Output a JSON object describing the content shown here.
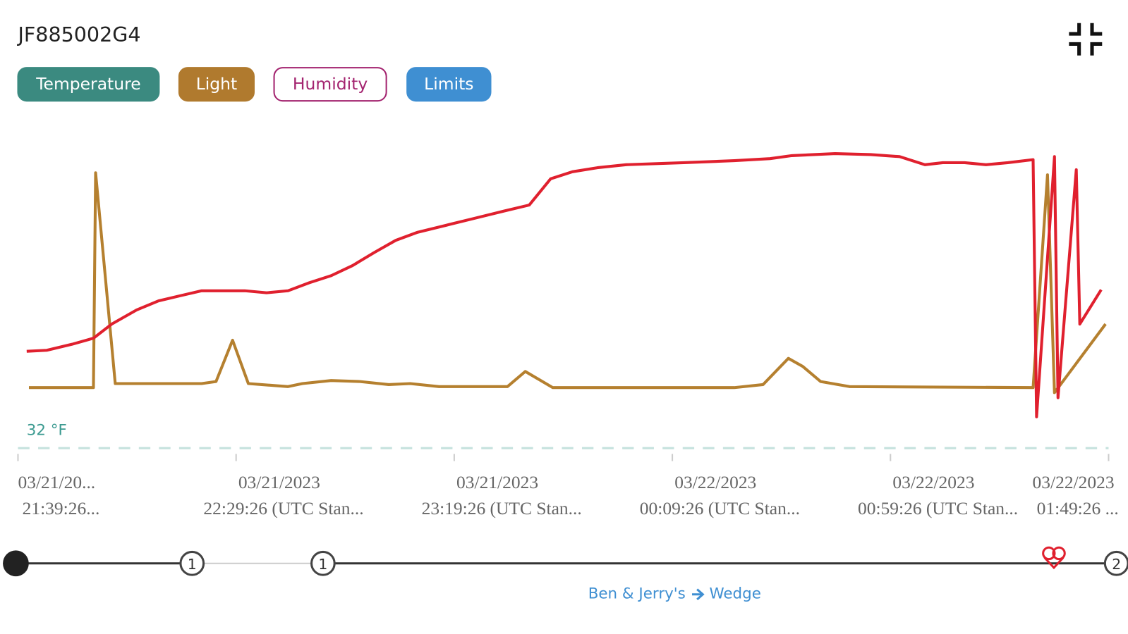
{
  "header": {
    "title": "JF885002G4",
    "buttons": [
      {
        "label": "Temperature",
        "color": "#3b8a80",
        "style": "filled"
      },
      {
        "label": "Light",
        "color": "#b07a2e",
        "style": "filled"
      },
      {
        "label": "Humidity",
        "color": "#a3236f",
        "style": "outline"
      },
      {
        "label": "Limits",
        "color": "#3f8fd2",
        "style": "filled"
      }
    ]
  },
  "chart_data": {
    "type": "line",
    "xlim": [
      0,
      250
    ],
    "ylim": [
      30,
      64
    ],
    "xticks": [
      {
        "value": 0,
        "label": [
          "03/21/20...",
          "21:39:26..."
        ]
      },
      {
        "value": 50,
        "label": [
          "03/21/2023",
          "22:29:26 (UTC Stan..."
        ]
      },
      {
        "value": 100,
        "label": [
          "03/21/2023",
          "23:19:26 (UTC Stan..."
        ]
      },
      {
        "value": 150,
        "label": [
          "03/22/2023",
          "00:09:26 (UTC Stan..."
        ]
      },
      {
        "value": 200,
        "label": [
          "03/22/2023",
          "00:59:26 (UTC Stan..."
        ]
      },
      {
        "value": 250,
        "label": [
          "03/22/2023",
          "01:49:26 ..."
        ]
      }
    ],
    "limits": [
      {
        "value": 32,
        "label": "32 °F",
        "color": "#3b9a90"
      }
    ],
    "series": [
      {
        "color": "#e0202e",
        "x": [
          2.0,
          6.6,
          12.4,
          17.3,
          21.5,
          27.2,
          32.2,
          37.1,
          42.1,
          47.0,
          52.0,
          57.0,
          61.9,
          66.8,
          71.8,
          76.7,
          81.7,
          86.6,
          91.6,
          98.2,
          104.8,
          111.4,
          117.2,
          122.1,
          127.1,
          132.8,
          139.4,
          152.6,
          164.2,
          172.4,
          177.4,
          187.3,
          195.5,
          202.1,
          207.9,
          212.0,
          217.0,
          221.9,
          226.9,
          232.7,
          233.5,
          237.6,
          238.4,
          242.6,
          243.4,
          248.3
        ],
        "values": [
          41.6,
          41.7,
          42.3,
          42.9,
          44.3,
          45.7,
          46.6,
          47.1,
          47.6,
          47.6,
          47.6,
          47.4,
          47.6,
          48.4,
          49.1,
          50.1,
          51.4,
          52.6,
          53.4,
          54.1,
          54.8,
          55.5,
          56.1,
          58.7,
          59.4,
          59.8,
          60.1,
          60.3,
          60.5,
          60.7,
          61.0,
          61.2,
          61.1,
          60.9,
          60.1,
          60.3,
          60.3,
          60.1,
          60.3,
          60.6,
          35.1,
          60.9,
          37.0,
          59.6,
          44.3,
          47.7
        ]
      },
      {
        "color": "#b5802f",
        "x": [
          2.5,
          17.3,
          17.8,
          22.3,
          42.1,
          45.4,
          49.2,
          52.8,
          61.9,
          65.2,
          71.8,
          78.4,
          85.0,
          89.9,
          96.5,
          112.2,
          116.3,
          122.6,
          164.2,
          170.8,
          176.6,
          179.9,
          184.0,
          190.6,
          232.7,
          236.0,
          237.6,
          249.3
        ],
        "values": [
          38.0,
          38.0,
          59.3,
          38.4,
          38.4,
          38.6,
          42.7,
          38.4,
          38.1,
          38.4,
          38.7,
          38.6,
          38.3,
          38.4,
          38.1,
          38.1,
          39.6,
          38.0,
          38.0,
          38.3,
          40.9,
          40.1,
          38.6,
          38.1,
          38.0,
          59.1,
          37.5,
          44.3
        ]
      }
    ]
  },
  "timeline": {
    "steps": [
      "1",
      "1",
      "2"
    ],
    "route": {
      "from": "Ben & Jerry's",
      "to": "Wedge"
    }
  }
}
